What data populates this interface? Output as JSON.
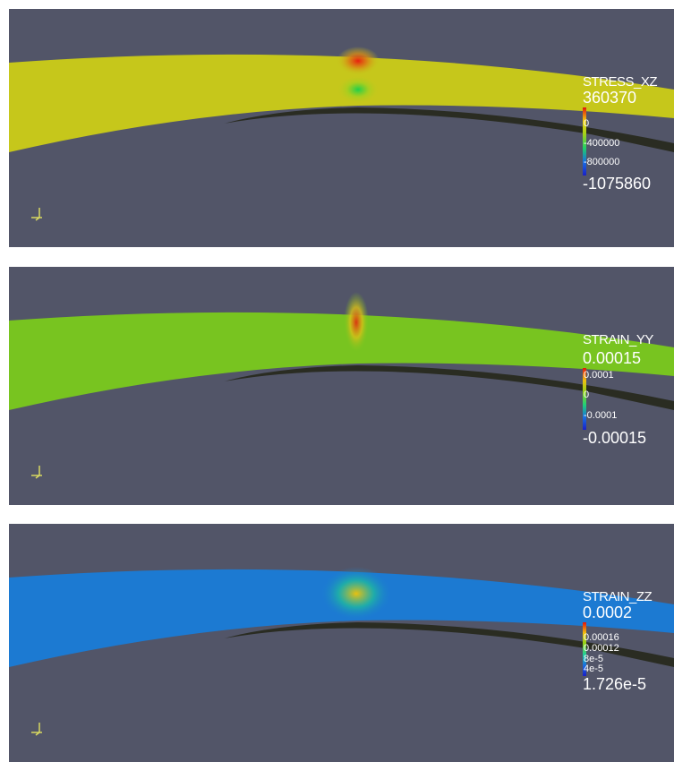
{
  "panels": [
    {
      "title": "STRESS_XZ",
      "max_label": "360370",
      "tick_labels": [
        "0",
        "-400000",
        "-800000"
      ],
      "min_label": "-1075860"
    },
    {
      "title": "STRAIN_YY",
      "max_label": "0.00015",
      "tick_labels": [
        "0.0001",
        "0",
        "-0.0001"
      ],
      "min_label": "-0.00015"
    },
    {
      "title": "STRAIN_ZZ",
      "max_label": "0.0002",
      "tick_labels": [
        "0.00016",
        "0.00012",
        "8e-5",
        "4e-5"
      ],
      "min_label": "1.726e-5"
    }
  ]
}
